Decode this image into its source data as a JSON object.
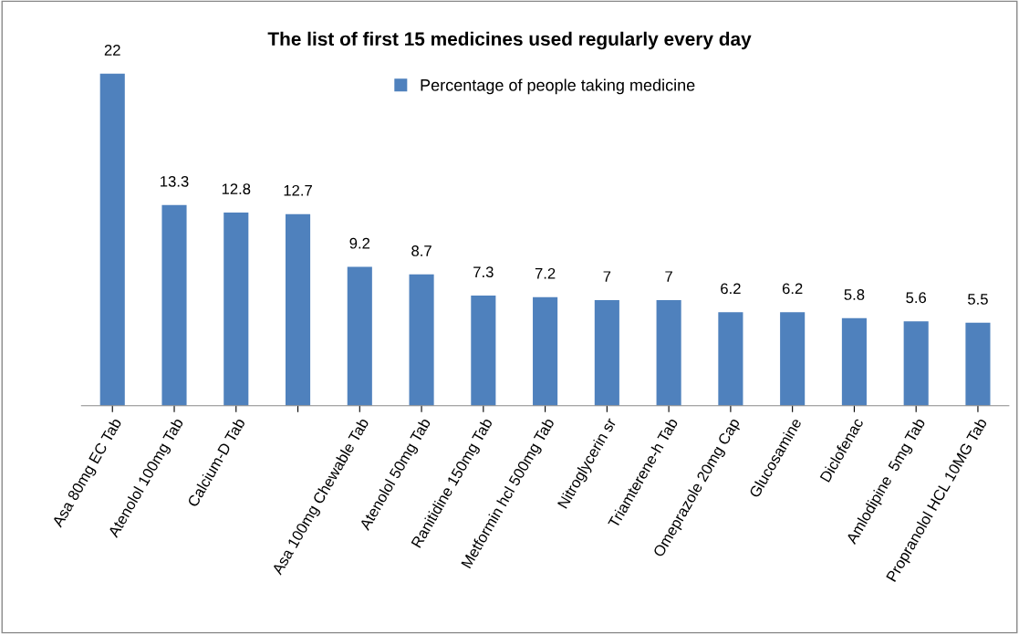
{
  "chart_data": {
    "type": "bar",
    "title": "The list of first 15 medicines used regularly every day",
    "categories": [
      "Asa 80mg EC Tab",
      "Atenolol 100mg Tab",
      "Calcium-D Tab",
      null,
      "Asa 100mg Chewable Tab",
      "Atenolol 50mg Tab",
      "Ranitidine 150mg Tab",
      "Metformin hcl 500mg Tab",
      "Nitroglycerin sr",
      "Triamterene-h Tab",
      "Omeprazole 20mg Cap",
      "Glucosamine",
      "Diclofenac",
      "Amlodipine  5mg Tab",
      "Propranolol HCL 10MG Tab"
    ],
    "series": [
      {
        "name": "Percentage of people taking medicine",
        "color": "#4f81bd",
        "values": [
          22,
          13.3,
          12.8,
          12.7,
          9.2,
          8.7,
          7.3,
          7.2,
          7,
          7,
          6.2,
          6.2,
          5.8,
          5.6,
          5.5
        ]
      }
    ],
    "data_labels": true,
    "legend": "top",
    "grid": false
  }
}
